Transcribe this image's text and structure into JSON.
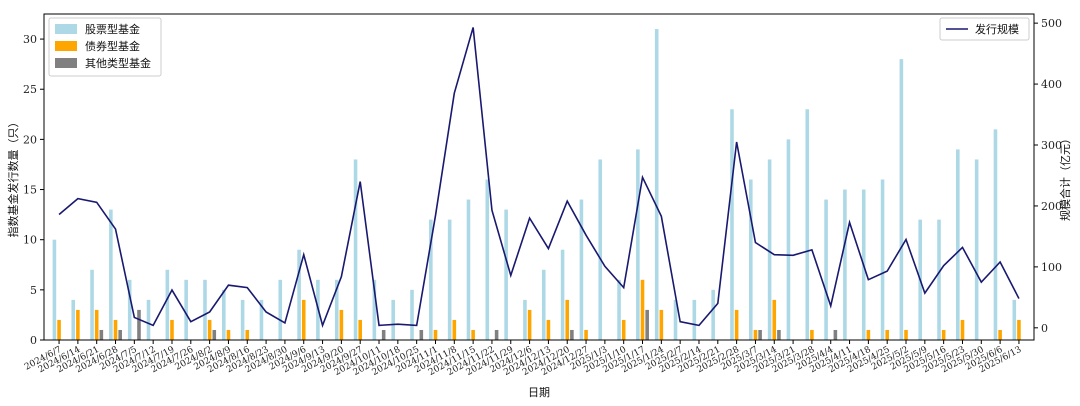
{
  "chart_data": {
    "type": "bar",
    "xlabel": "日期",
    "ylabel_left": "指数基金发行数量（只）",
    "ylabel_right": "规模合计（亿元）",
    "ylim_left": [
      0,
      32.5
    ],
    "ylim_right": [
      -20,
      515
    ],
    "yticks_left": [
      0,
      5,
      10,
      15,
      20,
      25,
      30
    ],
    "yticks_right": [
      0,
      100,
      200,
      300,
      400,
      500
    ],
    "categories": [
      "2024/6/7",
      "2024/6/14",
      "2024/6/21",
      "2024/6/28",
      "2024/7/5",
      "2024/7/12",
      "2024/7/19",
      "2024/7/26",
      "2024/8/2",
      "2024/8/9",
      "2024/8/16",
      "2024/8/23",
      "2024/8/30",
      "2024/9/6",
      "2024/9/13",
      "2024/9/20",
      "2024/9/27",
      "2024/10/11",
      "2024/10/18",
      "2024/10/25",
      "2024/11/1",
      "2024/11/8",
      "2024/11/15",
      "2024/11/22",
      "2024/11/29",
      "2024/12/6",
      "2024/12/13",
      "2024/12/20",
      "2024/12/27",
      "2025/1/3",
      "2025/1/10",
      "2025/1/17",
      "2025/1/24",
      "2025/2/7",
      "2025/2/14",
      "2025/2/21",
      "2025/2/28",
      "2025/3/7",
      "2025/3/14",
      "2025/3/21",
      "2025/3/28",
      "2025/4/4",
      "2025/4/11",
      "2025/4/18",
      "2025/4/25",
      "2025/5/2",
      "2025/5/9",
      "2025/5/16",
      "2025/5/23",
      "2025/5/30",
      "2025/6/6",
      "2025/6/13"
    ],
    "legend_left": [
      "股票型基金",
      "债券型基金",
      "其他类型基金"
    ],
    "legend_right": [
      "发行规模"
    ],
    "series": [
      {
        "name": "股票型基金",
        "kind": "bar",
        "axis": "left",
        "color": "#add8e6",
        "values": [
          10,
          4,
          7,
          13,
          6,
          4,
          7,
          6,
          6,
          5,
          4,
          4,
          6,
          9,
          6,
          6,
          18,
          6,
          4,
          5,
          12,
          12,
          14,
          16,
          13,
          4,
          7,
          9,
          14,
          18,
          6,
          19,
          31,
          4,
          4,
          5,
          23,
          16,
          18,
          20,
          23,
          14,
          15,
          15,
          16,
          28,
          12,
          12,
          19,
          18,
          21,
          4
        ]
      },
      {
        "name": "债券型基金",
        "kind": "bar",
        "axis": "left",
        "color": "#ffa500",
        "values": [
          2,
          3,
          3,
          2,
          0,
          0,
          2,
          0,
          2,
          1,
          1,
          0,
          0,
          4,
          0,
          3,
          2,
          0,
          0,
          0,
          1,
          2,
          1,
          0,
          0,
          3,
          2,
          4,
          1,
          0,
          2,
          6,
          3,
          0,
          0,
          0,
          3,
          1,
          4,
          0,
          1,
          0,
          0,
          1,
          1,
          1,
          0,
          1,
          2,
          0,
          1,
          2
        ]
      },
      {
        "name": "其他类型基金",
        "kind": "bar",
        "axis": "left",
        "color": "#808080",
        "values": [
          0,
          0,
          1,
          1,
          3,
          0,
          0,
          0,
          1,
          0,
          0,
          0,
          0,
          0,
          0,
          0,
          0,
          1,
          0,
          1,
          0,
          0,
          0,
          1,
          0,
          0,
          0,
          1,
          0,
          0,
          0,
          3,
          0,
          0,
          0,
          0,
          0,
          1,
          1,
          0,
          0,
          1,
          0,
          0,
          0,
          0,
          0,
          0,
          0,
          0,
          0,
          0
        ]
      },
      {
        "name": "发行规模",
        "kind": "line",
        "axis": "right",
        "color": "#191970",
        "values": [
          186,
          212,
          206,
          162,
          17,
          4,
          62,
          10,
          26,
          70,
          66,
          26,
          8,
          120,
          4,
          84,
          240,
          4,
          6,
          4,
          184,
          385,
          493,
          193,
          86,
          180,
          130,
          208,
          152,
          101,
          66,
          247,
          183,
          10,
          4,
          40,
          305,
          140,
          120,
          119,
          128,
          36,
          173,
          79,
          93,
          145,
          57,
          102,
          132,
          75,
          108,
          48
        ]
      }
    ]
  }
}
